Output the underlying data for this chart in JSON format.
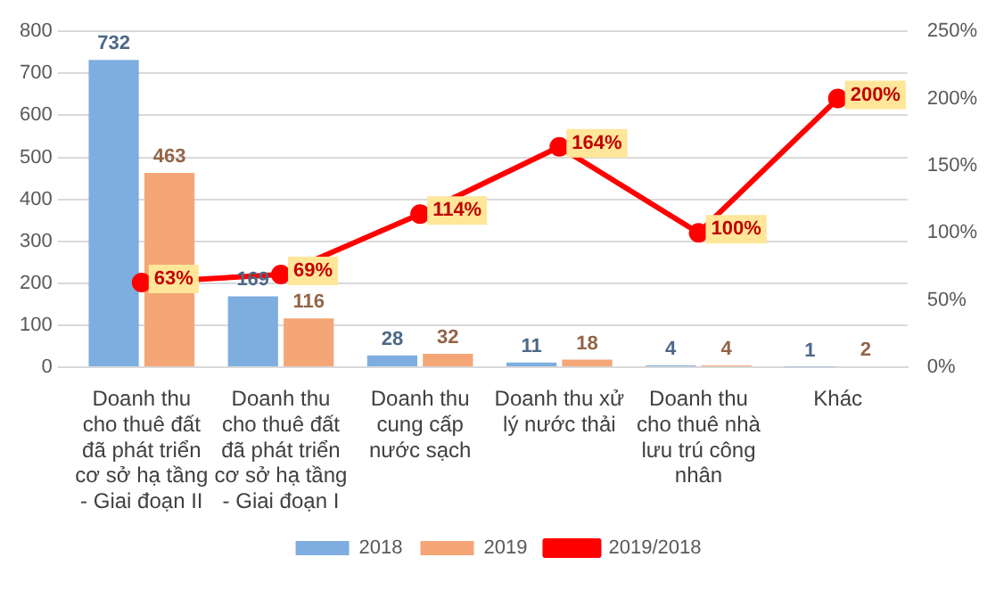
{
  "chart_data": {
    "type": "bar",
    "categories": [
      "Doanh thu cho thuê đất đã phát triển cơ sở hạ tầng - Giai đoạn II",
      "Doanh thu cho thuê đất đã phát triển cơ sở hạ tầng - Giai đoạn I",
      "Doanh thu cung cấp nước sạch",
      "Doanh thu xử lý nước thải",
      "Doanh thu cho thuê nhà lưu trú công nhân",
      "Khác"
    ],
    "series": [
      {
        "name": "2018",
        "color": "#7eaedf",
        "values": [
          732,
          169,
          28,
          11,
          4,
          1
        ],
        "value_labels": [
          "732",
          "169",
          "28",
          "11",
          "4",
          "1"
        ]
      },
      {
        "name": "2019",
        "color": "#f4a676",
        "values": [
          463,
          116,
          32,
          18,
          4,
          2
        ],
        "value_labels": [
          "463",
          "116",
          "32",
          "18",
          "4",
          "2"
        ]
      },
      {
        "name": "2019/2018",
        "type": "line",
        "axis": "y2",
        "color": "#ff0000",
        "marker": "circle",
        "values": [
          63,
          69,
          114,
          164,
          100,
          200
        ],
        "value_labels": [
          "63%",
          "69%",
          "114%",
          "164%",
          "100%",
          "200%"
        ]
      }
    ],
    "ylim": [
      0,
      800
    ],
    "yticks": [
      0,
      100,
      200,
      300,
      400,
      500,
      600,
      700,
      800
    ],
    "y2lim": [
      0,
      250
    ],
    "y2ticks": [
      {
        "value": 0,
        "label": "0%"
      },
      {
        "value": 50,
        "label": "50%"
      },
      {
        "value": 100,
        "label": "100%"
      },
      {
        "value": 150,
        "label": "150%"
      },
      {
        "value": 200,
        "label": "200%"
      },
      {
        "value": 250,
        "label": "250%"
      }
    ],
    "grid": "y",
    "legend": "bottom"
  }
}
